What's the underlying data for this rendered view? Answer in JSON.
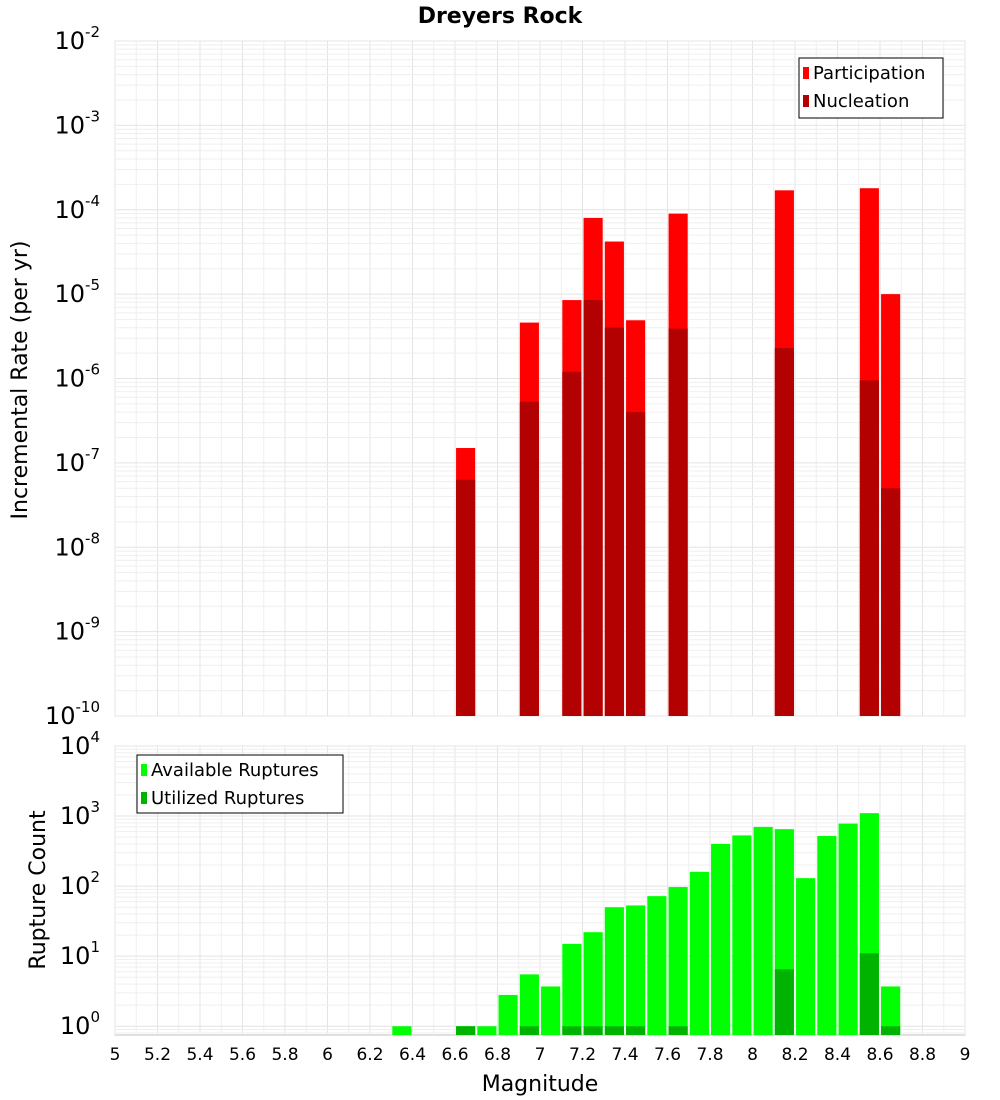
{
  "colors": {
    "participation": "#ff0000",
    "nucleation": "#b30000",
    "available": "#00ff00",
    "utilized": "#00b300"
  },
  "chart_data": [
    {
      "type": "bar",
      "title": "Dreyers Rock",
      "xlabel": "",
      "ylabel": "Incremental Rate (per yr)",
      "yscale": "log",
      "xlim": [
        5,
        9
      ],
      "ylim": [
        1e-10,
        0.01
      ],
      "ytick_exponents": [
        "-10",
        "-9",
        "-8",
        "-7",
        "-6",
        "-5",
        "-4",
        "-3",
        "-2"
      ],
      "legend": {
        "position": "top-right",
        "entries": [
          "Participation",
          "Nucleation"
        ]
      },
      "bar_width": 0.09,
      "series": [
        {
          "name": "Participation",
          "x": [
            6.65,
            6.95,
            7.15,
            7.25,
            7.35,
            7.45,
            7.65,
            8.15,
            8.55,
            8.65
          ],
          "values": [
            1.5e-07,
            4.6e-06,
            8.5e-06,
            8e-05,
            4.2e-05,
            4.9e-06,
            9e-05,
            0.00017,
            0.00018,
            1e-05
          ]
        },
        {
          "name": "Nucleation",
          "x": [
            6.65,
            6.95,
            7.15,
            7.25,
            7.35,
            7.45,
            7.65,
            8.15,
            8.55,
            8.65
          ],
          "values": [
            6.3e-08,
            5.3e-07,
            1.2e-06,
            8.5e-06,
            4e-06,
            4e-07,
            3.9e-06,
            2.3e-06,
            9.5e-07,
            5e-08
          ]
        }
      ]
    },
    {
      "type": "bar",
      "title": "",
      "xlabel": "Magnitude",
      "ylabel": "Rupture Count",
      "yscale": "log",
      "xlim": [
        5,
        9
      ],
      "ylim": [
        0.75,
        10000.0
      ],
      "ytick_exponents": [
        "0",
        "1",
        "2",
        "3",
        "4"
      ],
      "xticks": [
        "5",
        "5.2",
        "5.4",
        "5.6",
        "5.8",
        "6",
        "6.2",
        "6.4",
        "6.6",
        "6.8",
        "7",
        "7.2",
        "7.4",
        "7.6",
        "7.8",
        "8",
        "8.2",
        "8.4",
        "8.6",
        "8.8",
        "9"
      ],
      "legend": {
        "position": "top-left",
        "entries": [
          "Available Ruptures",
          "Utilized Ruptures"
        ]
      },
      "bar_width": 0.09,
      "series": [
        {
          "name": "Available Ruptures",
          "x": [
            6.35,
            6.65,
            6.75,
            6.85,
            6.95,
            7.05,
            7.15,
            7.25,
            7.35,
            7.45,
            7.55,
            7.65,
            7.75,
            7.85,
            7.95,
            8.05,
            8.15,
            8.25,
            8.35,
            8.45,
            8.55,
            8.65
          ],
          "values": [
            1,
            1,
            1,
            2.8,
            5.5,
            3.7,
            15,
            22,
            50,
            53,
            72,
            97,
            160,
            400,
            530,
            700,
            650,
            130,
            520,
            780,
            1100,
            3.7
          ]
        },
        {
          "name": "Utilized Ruptures",
          "x": [
            6.65,
            6.95,
            7.15,
            7.25,
            7.35,
            7.45,
            7.65,
            8.15,
            8.55,
            8.65
          ],
          "values": [
            1,
            1,
            1,
            1,
            1,
            1,
            1,
            6.5,
            11,
            1
          ]
        }
      ]
    }
  ]
}
